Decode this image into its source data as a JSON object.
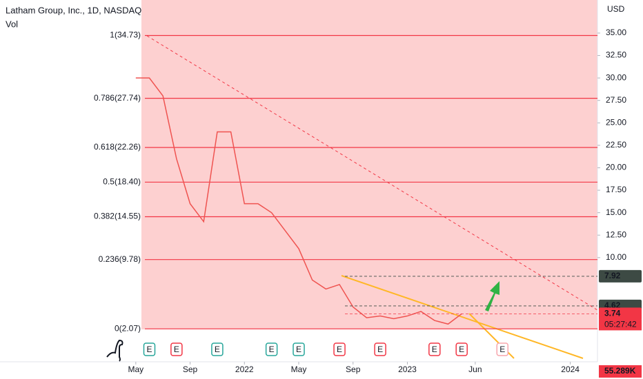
{
  "chart_data": {
    "type": "line",
    "title": "Latham Group, Inc., 1D, NASDAQ",
    "subtitle": "Vol",
    "y_axis_label": "USD",
    "x": [
      "2021-05",
      "2021-06",
      "2021-07",
      "2021-08",
      "2021-09",
      "2021-10",
      "2021-11",
      "2021-12",
      "2022-01",
      "2022-02",
      "2022-03",
      "2022-04",
      "2022-05",
      "2022-06",
      "2022-07",
      "2022-08",
      "2022-09",
      "2022-10",
      "2022-11",
      "2022-12",
      "2023-01",
      "2023-02",
      "2023-03",
      "2023-04",
      "2023-05"
    ],
    "series": [
      {
        "name": "Price",
        "color": "#ef5350",
        "values": [
          30,
          30,
          28,
          21,
          16,
          14,
          24,
          24,
          16,
          16,
          15,
          13,
          11,
          7.5,
          6.5,
          7,
          4.5,
          3.3,
          3.5,
          3.2,
          3.5,
          4,
          3,
          2.6,
          3.74
        ]
      }
    ],
    "xlim": [
      "2020-07",
      "2024-03"
    ],
    "xticks": [
      {
        "value": "2021-05",
        "label": "May"
      },
      {
        "value": "2021-09",
        "label": "Sep"
      },
      {
        "value": "2022-01",
        "label": "2022"
      },
      {
        "value": "2022-05",
        "label": "May"
      },
      {
        "value": "2022-09",
        "label": "Sep"
      },
      {
        "value": "2023-01",
        "label": "2023"
      },
      {
        "value": "2023-06",
        "label": "Jun"
      },
      {
        "value": "2024-01",
        "label": "2024"
      }
    ],
    "ylim": [
      -1.6,
      38.68
    ],
    "yticks": [
      {
        "value": 35,
        "label": "35.00"
      },
      {
        "value": 32.5,
        "label": "32.50"
      },
      {
        "value": 30,
        "label": "30.00"
      },
      {
        "value": 27.5,
        "label": "27.50"
      },
      {
        "value": 25,
        "label": "25.00"
      },
      {
        "value": 22.5,
        "label": "22.50"
      },
      {
        "value": 20,
        "label": "20.00"
      },
      {
        "value": 17.5,
        "label": "17.50"
      },
      {
        "value": 15,
        "label": "15.00"
      },
      {
        "value": 12.5,
        "label": "12.50"
      },
      {
        "value": 10,
        "label": "10.00"
      }
    ],
    "fib_levels": [
      {
        "value": 34.73,
        "label": "1(34.73)"
      },
      {
        "value": 27.74,
        "label": "0.786(27.74)"
      },
      {
        "value": 22.26,
        "label": "0.618(22.26)"
      },
      {
        "value": 18.4,
        "label": "0.5(18.40)"
      },
      {
        "value": 14.55,
        "label": "0.382(14.55)"
      },
      {
        "value": 9.78,
        "label": "0.236(9.78)"
      },
      {
        "value": 2.07,
        "label": "0(2.07)"
      }
    ],
    "fib_color": "#f23645",
    "price_markers": [
      {
        "value": 7.92,
        "label": "7.92",
        "color": "#3d4a44"
      },
      {
        "value": 4.62,
        "label": "4.62",
        "color": "#3d4a44"
      },
      {
        "value": 3.74,
        "label": "3.74",
        "color": "#f23645"
      }
    ],
    "countdown": "05:27:42",
    "volume_label": "55.289K",
    "earnings": [
      {
        "date": "2021-06",
        "label": "E",
        "color": "#26a69a"
      },
      {
        "date": "2021-08",
        "label": "E",
        "color": "#f23645"
      },
      {
        "date": "2021-11",
        "label": "E",
        "color": "#26a69a"
      },
      {
        "date": "2022-03",
        "label": "E",
        "color": "#26a69a"
      },
      {
        "date": "2022-05",
        "label": "E",
        "color": "#26a69a"
      },
      {
        "date": "2022-08",
        "label": "E",
        "color": "#f23645"
      },
      {
        "date": "2022-11",
        "label": "E",
        "color": "#f23645"
      },
      {
        "date": "2023-03",
        "label": "E",
        "color": "#f23645"
      },
      {
        "date": "2023-05",
        "label": "E",
        "color": "#f23645"
      },
      {
        "date": "2023-08",
        "label": "E",
        "color": "#f7a5ac"
      }
    ]
  }
}
